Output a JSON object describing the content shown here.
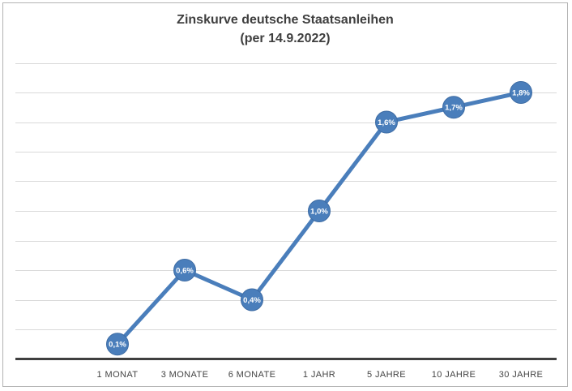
{
  "window": {
    "background": "#ffffff",
    "frame_border_color": "#b3b3b3"
  },
  "chart_data": {
    "type": "line",
    "title": "Zinskurve deutsche Staatsanleihen",
    "subtitle": "(per 14.9.2022)",
    "categories": [
      "1 MONAT",
      "3 MONATE",
      "6 MONATE",
      "1 JAHR",
      "5 JAHRE",
      "10 JAHRE",
      "30 JAHRE"
    ],
    "values": [
      0.1,
      0.6,
      0.4,
      1.0,
      1.6,
      1.7,
      1.8
    ],
    "point_labels": [
      "0,1%",
      "0,6%",
      "0,4%",
      "1,0%",
      "1,6%",
      "1,7%",
      "1,8%"
    ],
    "xlabel": "",
    "ylabel": "",
    "ylim": [
      0,
      2.0
    ],
    "grid_step": 0.2,
    "gridlines": "horizontal",
    "legend": "none",
    "y_tick_labels_visible": false,
    "colors": {
      "line": "#4a7ebb",
      "marker_fill": "#4a7ebb",
      "marker_border": "#3d6ba3",
      "point_label_text": "#ffffff",
      "grid": "#d9d9d9",
      "axis_line": "#3f3f3f",
      "title_text": "#3f3f3f",
      "category_text": "#444444"
    }
  }
}
